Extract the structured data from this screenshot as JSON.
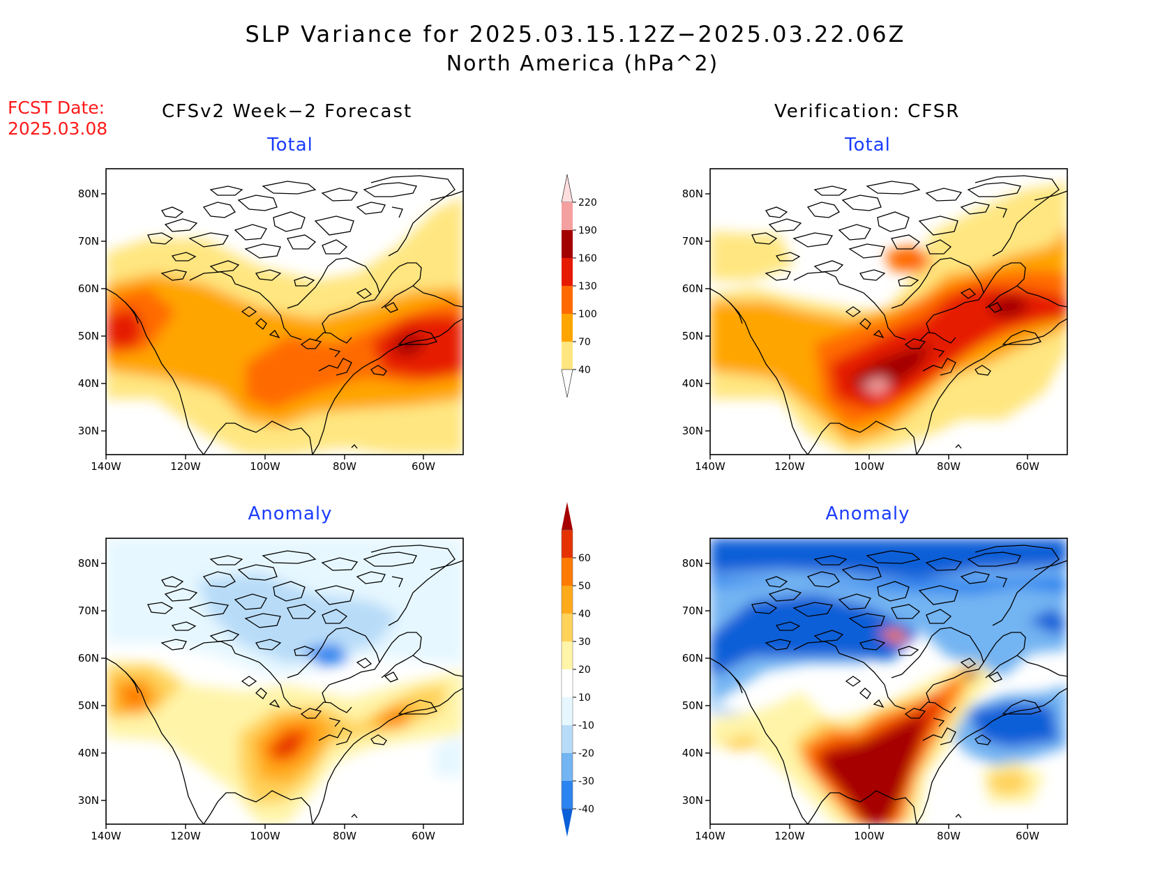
{
  "header": {
    "title": "SLP Variance for 2025.03.15.12Z−2025.03.22.06Z",
    "subtitle": "North America (hPa^2)"
  },
  "fcst_date": {
    "label": "FCST Date:",
    "value": "2025.03.08"
  },
  "columns": {
    "left": "CFSv2 Week−2 Forecast",
    "right": "Verification: CFSR"
  },
  "panels": {
    "total": "Total",
    "anomaly": "Anomaly"
  },
  "axes": {
    "lat_labels": [
      "80N",
      "70N",
      "60N",
      "50N",
      "40N",
      "30N"
    ],
    "lon_labels": [
      "140W",
      "120W",
      "100W",
      "80W",
      "60W"
    ]
  },
  "colorbars": {
    "total": {
      "levels": [
        "40",
        "70",
        "100",
        "130",
        "160",
        "190",
        "220"
      ],
      "colors": [
        "#ffe680",
        "#ffa500",
        "#ff6a00",
        "#e61a00",
        "#a30000",
        "#f4a0a0",
        "#ffdede"
      ]
    },
    "anomaly": {
      "levels": [
        "-40",
        "-30",
        "-20",
        "-10",
        "10",
        "20",
        "30",
        "40",
        "50",
        "60"
      ],
      "colors": [
        "#0a5fd8",
        "#2b84ef",
        "#73b4f2",
        "#b8dcf8",
        "#e6f7ff",
        "#ffffff",
        "#fff4a8",
        "#ffd25a",
        "#ffaa1a",
        "#ff7a00",
        "#e63200",
        "#a60000"
      ]
    }
  },
  "chart_data": [
    {
      "type": "heatmap",
      "title": "Total",
      "source": "CFSv2 Week−2 Forecast",
      "xlim": [
        "140W",
        "50W"
      ],
      "ylim": [
        "25N",
        "85N"
      ],
      "maxima": [
        {
          "lon": "63W",
          "lat": "47N",
          "range": "130–160"
        },
        {
          "lon": "135W",
          "lat": "51N",
          "range": "100–130"
        }
      ]
    },
    {
      "type": "heatmap",
      "title": "Total",
      "source": "Verification: CFSR",
      "xlim": [
        "140W",
        "50W"
      ],
      "ylim": [
        "25N",
        "85N"
      ],
      "maxima": [
        {
          "lon": "97W",
          "lat": "38N",
          "range": "190–220"
        },
        {
          "lon": "68W",
          "lat": "55N",
          "range": "160–190"
        }
      ]
    },
    {
      "type": "heatmap",
      "title": "Anomaly",
      "source": "CFSv2 Week−2 Forecast",
      "xlim": [
        "140W",
        "50W"
      ],
      "ylim": [
        "25N",
        "85N"
      ],
      "maxima": [
        {
          "lon": "92W",
          "lat": "42N",
          "range": "40–50"
        },
        {
          "lon": "135W",
          "lat": "52N",
          "range": "40–50"
        }
      ]
    },
    {
      "type": "heatmap",
      "title": "Anomaly",
      "source": "Verification: CFSR",
      "xlim": [
        "140W",
        "50W"
      ],
      "ylim": [
        "25N",
        "85N"
      ],
      "maxima": [
        {
          "lon": "95W",
          "lat": "37N",
          "range": ">60"
        },
        {
          "lon": "120W",
          "lat": "65N",
          "range": "<-40"
        }
      ]
    }
  ]
}
